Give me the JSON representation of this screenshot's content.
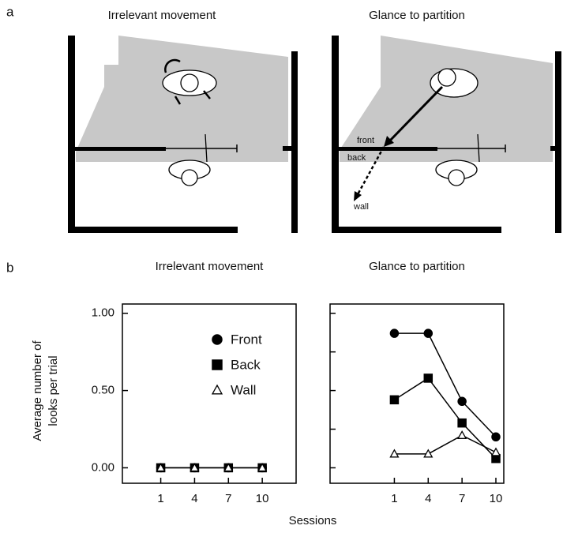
{
  "panel_a": {
    "label": "a",
    "titles": [
      "Irrelevant movement",
      "Glance to partition"
    ],
    "annotations": [
      "front",
      "back",
      "wall"
    ]
  },
  "panel_b": {
    "label": "b",
    "ylabel": [
      "Average number of",
      "looks per trial"
    ],
    "xlabel": "Sessions"
  },
  "chart_data": [
    {
      "type": "line",
      "title": "Irrelevant movement",
      "x": [
        1,
        4,
        7,
        10
      ],
      "xlim": [
        -2.4,
        13
      ],
      "xticks": [
        1,
        4,
        7,
        10
      ],
      "ylim": [
        -0.1,
        1.06
      ],
      "yticks": [
        {
          "value": 0,
          "label": "0.00"
        },
        {
          "value": 0.5,
          "label": "0.50"
        },
        {
          "value": 1,
          "label": "1.00"
        }
      ],
      "ytick_labels": true,
      "legend": "upper right",
      "series": [
        {
          "name": "Front",
          "color": "#000000",
          "marker": "circle",
          "filled": true,
          "values": [
            0,
            0,
            0,
            0
          ]
        },
        {
          "name": "Back",
          "color": "#000000",
          "marker": "square",
          "filled": true,
          "values": [
            0,
            0,
            0,
            0
          ]
        },
        {
          "name": "Wall",
          "color": "#000000",
          "marker": "triangle",
          "filled": false,
          "values": [
            0,
            0,
            0,
            0
          ]
        }
      ]
    },
    {
      "type": "line",
      "title": "Glance to partition",
      "x": [
        1,
        4,
        7,
        10
      ],
      "xlim": [
        -4.7,
        10.7
      ],
      "xticks": [
        1,
        4,
        7,
        10
      ],
      "ylim": [
        -0.1,
        1.06
      ],
      "yticks": [
        0,
        0.25,
        0.5,
        0.75,
        1
      ],
      "ytick_labels": false,
      "series": [
        {
          "name": "Front",
          "color": "#000000",
          "marker": "circle",
          "filled": true,
          "values": [
            0.87,
            0.87,
            0.43,
            0.2
          ]
        },
        {
          "name": "Back",
          "color": "#000000",
          "marker": "square",
          "filled": true,
          "values": [
            0.44,
            0.58,
            0.29,
            0.06
          ]
        },
        {
          "name": "Wall",
          "color": "#000000",
          "marker": "triangle",
          "filled": false,
          "values": [
            0.09,
            0.09,
            0.21,
            0.1
          ]
        }
      ]
    }
  ]
}
